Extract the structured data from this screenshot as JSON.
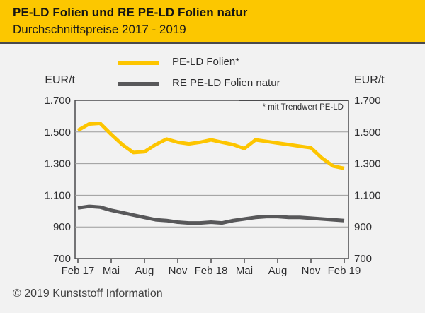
{
  "header": {
    "title": "PE-LD Folien und RE PE-LD Folien natur",
    "subtitle": "Durchschnittspreise 2017 - 2019"
  },
  "footer": {
    "copyright": "© 2019 Kunststoff Information"
  },
  "colors": {
    "header_bg": "#FCC700",
    "background": "#F2F2F2",
    "axis": "#4A4A4C",
    "grid": "#9B9B9B",
    "text": "#2E2E30",
    "series_yellow": "#FDC500",
    "series_gray": "#58585A"
  },
  "chart_data": {
    "type": "line",
    "title": "PE-LD Folien und RE PE-LD Folien natur",
    "subtitle": "Durchschnittspreise 2017 - 2019",
    "unit_left": "EUR/t",
    "unit_right": "EUR/t",
    "annotation": "* mit Trendwert PE-LD",
    "grid": true,
    "legend_position": "top",
    "n_points": 25,
    "x_interval": "monthly Feb 2017 - Feb 2019",
    "x_tick_labels": [
      "Feb 17",
      "Mai",
      "Aug",
      "Nov",
      "Feb 18",
      "Mai",
      "Aug",
      "Nov",
      "Feb 19"
    ],
    "x_tick_indices": [
      0,
      3,
      6,
      9,
      12,
      15,
      18,
      21,
      24
    ],
    "ylim": [
      700,
      1700
    ],
    "y_ticks": [
      1700,
      1500,
      1300,
      1100,
      900,
      700
    ],
    "y_tick_labels": [
      "1.700",
      "1.500",
      "1.300",
      "1.100",
      "900",
      "700"
    ],
    "series": [
      {
        "name": "PE-LD Folien*",
        "color": "#FDC500",
        "values": [
          1510,
          1550,
          1555,
          1485,
          1420,
          1370,
          1375,
          1420,
          1455,
          1435,
          1425,
          1435,
          1450,
          1435,
          1420,
          1395,
          1450,
          1440,
          1430,
          1420,
          1410,
          1400,
          1335,
          1285,
          1270
        ]
      },
      {
        "name": "RE PE-LD Folien natur",
        "color": "#58585A",
        "values": [
          1020,
          1030,
          1025,
          1005,
          990,
          975,
          960,
          945,
          940,
          930,
          925,
          925,
          930,
          925,
          940,
          950,
          960,
          965,
          965,
          960,
          960,
          955,
          950,
          945,
          940
        ]
      }
    ]
  }
}
